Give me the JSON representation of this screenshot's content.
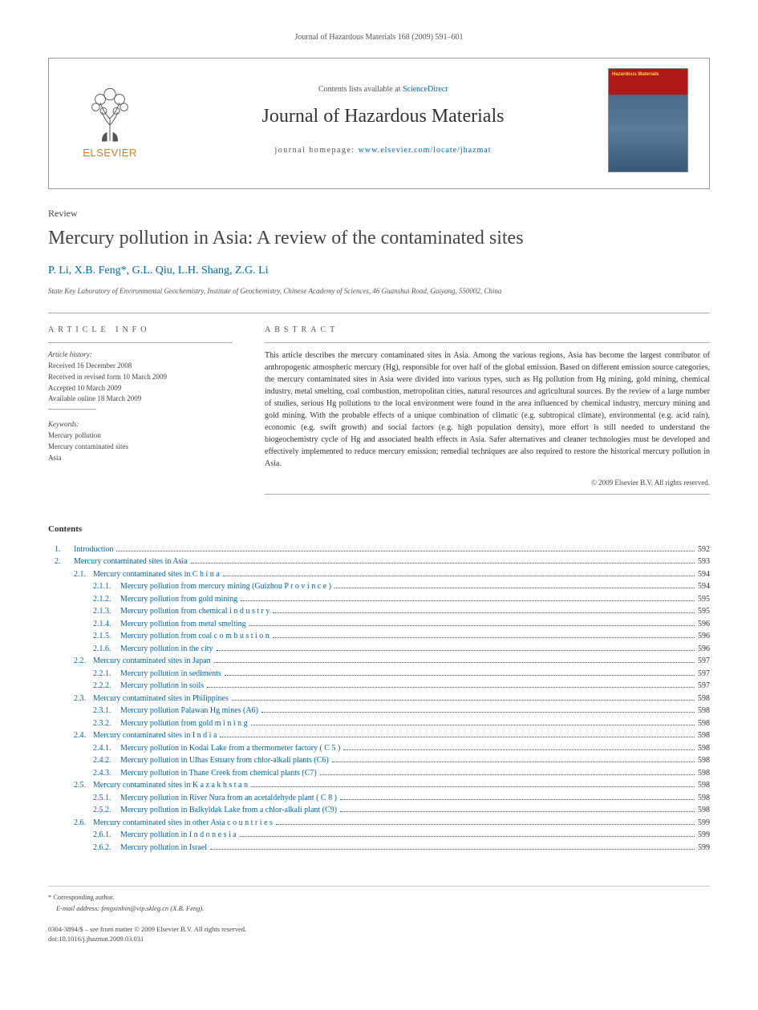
{
  "citation": "Journal of Hazardous Materials 168 (2009) 591–601",
  "header": {
    "publisher": "ELSEVIER",
    "contents_prefix": "Contents lists available at",
    "contents_link": "ScienceDirect",
    "journal_title": "Journal of Hazardous Materials",
    "homepage_prefix": "journal homepage:",
    "homepage_url": "www.elsevier.com/locate/jhazmat"
  },
  "article": {
    "type": "Review",
    "title": "Mercury pollution in Asia: A review of the contaminated sites",
    "authors": "P. Li, X.B. Feng*, G.L. Qiu, L.H. Shang, Z.G. Li",
    "affiliation": "State Key Laboratory of Environmental Geochemistry, Institute of Geochemistry, Chinese Academy of Sciences, 46 Guanshui Road, Guiyang, 550002, China"
  },
  "info": {
    "heading": "ARTICLE INFO",
    "history_label": "Article history:",
    "history": [
      "Received 16 December 2008",
      "Received in revised form 10 March 2009",
      "Accepted 10 March 2009",
      "Available online 18 March 2009"
    ],
    "keywords_label": "Keywords:",
    "keywords": [
      "Mercury pollution",
      "Mercury contaminated sites",
      "Asia"
    ]
  },
  "abstract": {
    "heading": "ABSTRACT",
    "text": "This article describes the mercury contaminated sites in Asia. Among the various regions, Asia has become the largest contributor of anthropogenic atmospheric mercury (Hg), responsible for over half of the global emission. Based on different emission source categories, the mercury contaminated sites in Asia were divided into various types, such as Hg pollution from Hg mining, gold mining, chemical industry, metal smelting, coal combustion, metropolitan cities, natural resources and agricultural sources. By the review of a large number of studies, serious Hg pollutions to the local environment were found in the area influenced by chemical industry, mercury mining and gold mining. With the probable effects of a unique combination of climatic (e.g. subtropical climate), environmental (e.g. acid rain), economic (e.g. swift growth) and social factors (e.g. high population density), more effort is still needed to understand the biogeochemistry cycle of Hg and associated health effects in Asia. Safer alternatives and cleaner technologies must be developed and effectively implemented to reduce mercury emission; remedial techniques are also required to restore the historical mercury pollution in Asia.",
    "copyright": "© 2009 Elsevier B.V. All rights reserved."
  },
  "contents_heading": "Contents",
  "toc": [
    {
      "level": 1,
      "num": "1.",
      "label": "Introduction",
      "page": "592"
    },
    {
      "level": 1,
      "num": "2.",
      "label": "Mercury contaminated sites in Asia",
      "page": "593"
    },
    {
      "level": 2,
      "num": "2.1.",
      "label": "Mercury contaminated sites in C h i n a",
      "page": "594"
    },
    {
      "level": 3,
      "num": "2.1.1.",
      "label": "Mercury pollution from mercury mining (Guizhou P r o v i n c e )",
      "page": "594"
    },
    {
      "level": 3,
      "num": "2.1.2.",
      "label": "Mercury pollution from gold mining",
      "page": "595"
    },
    {
      "level": 3,
      "num": "2.1.3.",
      "label": "Mercury pollution from chemical i n d u s t r y",
      "page": "595"
    },
    {
      "level": 3,
      "num": "2.1.4.",
      "label": "Mercury pollution from metal smelting",
      "page": "596"
    },
    {
      "level": 3,
      "num": "2.1.5.",
      "label": "Mercury pollution from coal c o m b u s t i o n",
      "page": "596"
    },
    {
      "level": 3,
      "num": "2.1.6.",
      "label": "Mercury pollution in the city",
      "page": "596"
    },
    {
      "level": 2,
      "num": "2.2.",
      "label": "Mercury contaminated sites in Japan",
      "page": "597"
    },
    {
      "level": 3,
      "num": "2.2.1.",
      "label": "Mercury pollution in sediments",
      "page": "597"
    },
    {
      "level": 3,
      "num": "2.2.2.",
      "label": " Mercury pollution in soils",
      "page": "597"
    },
    {
      "level": 2,
      "num": "2.3.",
      "label": "Mercury contaminated sites in Philippines",
      "page": "598"
    },
    {
      "level": 3,
      "num": "2.3.1.",
      "label": "Mercury pollution Palawan Hg mines (A6)",
      "page": "598"
    },
    {
      "level": 3,
      "num": "2.3.2.",
      "label": "Mercury pollution from gold m i n i n g",
      "page": "598"
    },
    {
      "level": 2,
      "num": "2.4.",
      "label": "Mercury contaminated sites in I n d i a",
      "page": "598"
    },
    {
      "level": 3,
      "num": "2.4.1.",
      "label": "Mercury pollution in Kodai Lake from a thermometer factory ( C 5 )",
      "page": "598"
    },
    {
      "level": 3,
      "num": "2.4.2.",
      "label": " Mercury pollution in Ulhas Estuary from chlor-alkali plants (C6)",
      "page": "598"
    },
    {
      "level": 3,
      "num": "2.4.3.",
      "label": "Mercury pollution in Thane Creek from chemical plants (C7)",
      "page": "598"
    },
    {
      "level": 2,
      "num": "2.5.",
      "label": "Mercury contaminated sites in K a z a k h s t a n",
      "page": "598"
    },
    {
      "level": 3,
      "num": "2.5.1.",
      "label": "Mercury pollution in River Nura from an acetaldehyde plant ( C 8 )",
      "page": "598"
    },
    {
      "level": 3,
      "num": "2.5.2.",
      "label": "Mercury pollution in Balkyldak Lake from a chlor-alkali plant (C9)",
      "page": "598"
    },
    {
      "level": 2,
      "num": "2.6.",
      "label": "Mercury contaminated sites in other Asia c o u n t r i e s",
      "page": "599"
    },
    {
      "level": 3,
      "num": "2.6.1.",
      "label": "Mercury pollution in I n d o n e s i a",
      "page": "599"
    },
    {
      "level": 3,
      "num": "2.6.2.",
      "label": " Mercury pollution in Israel",
      "page": "599"
    }
  ],
  "footnote": {
    "marker": "* Corresponding author.",
    "email_label": "E-mail address:",
    "email": "fengxinbin@vip.skleg.cn (X.B. Feng)."
  },
  "front_matter": {
    "line1": "0304-3894/$ – see front matter © 2009 Elsevier B.V. All rights reserved.",
    "line2": "doi:10.1016/j.jhazmat.2009.03.031"
  }
}
